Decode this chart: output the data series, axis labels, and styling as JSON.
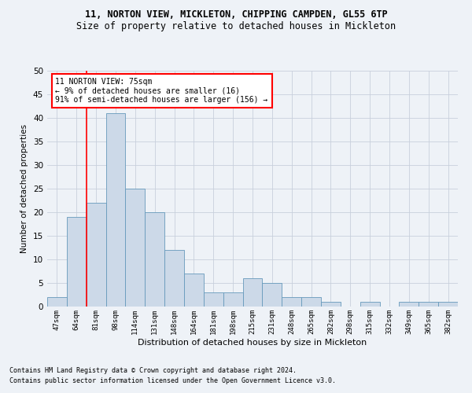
{
  "title1": "11, NORTON VIEW, MICKLETON, CHIPPING CAMPDEN, GL55 6TP",
  "title2": "Size of property relative to detached houses in Mickleton",
  "xlabel": "Distribution of detached houses by size in Mickleton",
  "ylabel": "Number of detached properties",
  "categories": [
    "47sqm",
    "64sqm",
    "81sqm",
    "98sqm",
    "114sqm",
    "131sqm",
    "148sqm",
    "164sqm",
    "181sqm",
    "198sqm",
    "215sqm",
    "231sqm",
    "248sqm",
    "265sqm",
    "282sqm",
    "298sqm",
    "315sqm",
    "332sqm",
    "349sqm",
    "365sqm",
    "382sqm"
  ],
  "values": [
    2,
    19,
    22,
    41,
    25,
    20,
    12,
    7,
    3,
    3,
    6,
    5,
    2,
    2,
    1,
    0,
    1,
    0,
    1,
    1,
    1
  ],
  "bar_color": "#ccd9e8",
  "bar_edge_color": "#6699bb",
  "grid_color": "#c8d0dc",
  "annotation_text": "11 NORTON VIEW: 75sqm\n← 9% of detached houses are smaller (16)\n91% of semi-detached houses are larger (156) →",
  "annotation_box_color": "white",
  "annotation_line_color": "red",
  "vline_x": 1.5,
  "footnote1": "Contains HM Land Registry data © Crown copyright and database right 2024.",
  "footnote2": "Contains public sector information licensed under the Open Government Licence v3.0.",
  "ylim": [
    0,
    50
  ],
  "background_color": "#eef2f7",
  "plot_bg_color": "#eef2f7",
  "title1_fontsize": 8.5,
  "title2_fontsize": 8.5
}
